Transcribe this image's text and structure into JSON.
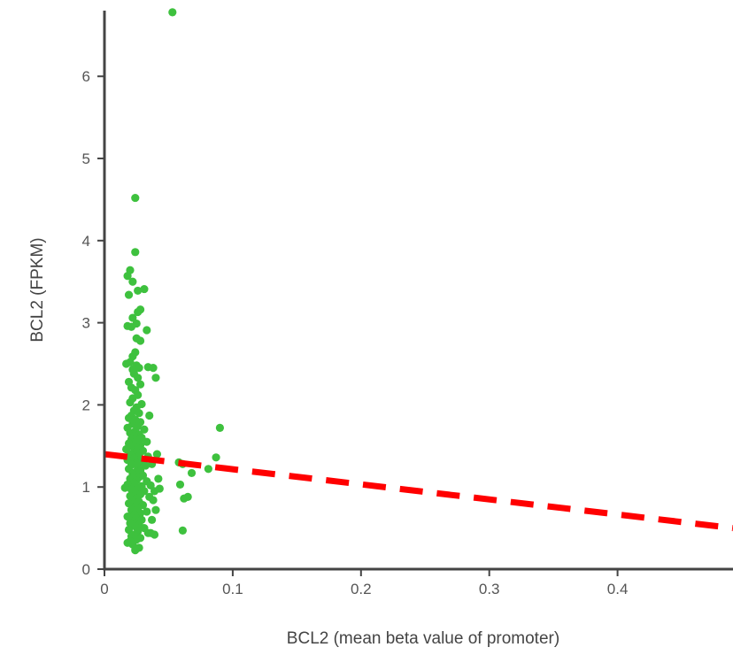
{
  "chart_data": {
    "type": "scatter",
    "xlabel": "BCL2 (mean beta value of promoter)",
    "ylabel": "BCL2 (FPKM)",
    "xlim": [
      0,
      0.49
    ],
    "ylim": [
      0,
      6.8
    ],
    "x_ticks": [
      0,
      0.1,
      0.2,
      0.3,
      0.4
    ],
    "x_tick_labels": [
      "0",
      "0.1",
      "0.2",
      "0.3",
      "0.4"
    ],
    "y_ticks": [
      0,
      1,
      2,
      3,
      4,
      5,
      6
    ],
    "y_tick_labels": [
      "0",
      "1",
      "2",
      "3",
      "4",
      "5",
      "6"
    ],
    "grid": false,
    "legend": "none",
    "series": [
      {
        "color": "#3ec13e",
        "points": [
          [
            0.053,
            6.78
          ],
          [
            0.024,
            4.52
          ],
          [
            0.024,
            3.86
          ],
          [
            0.02,
            3.64
          ],
          [
            0.018,
            3.57
          ],
          [
            0.022,
            3.5
          ],
          [
            0.031,
            3.41
          ],
          [
            0.026,
            3.39
          ],
          [
            0.019,
            3.34
          ],
          [
            0.028,
            3.16
          ],
          [
            0.026,
            3.13
          ],
          [
            0.022,
            3.06
          ],
          [
            0.025,
            2.99
          ],
          [
            0.018,
            2.96
          ],
          [
            0.033,
            2.91
          ],
          [
            0.021,
            2.95
          ],
          [
            0.025,
            2.81
          ],
          [
            0.028,
            2.78
          ],
          [
            0.024,
            2.64
          ],
          [
            0.022,
            2.59
          ],
          [
            0.02,
            2.52
          ],
          [
            0.025,
            2.48
          ],
          [
            0.027,
            2.45
          ],
          [
            0.034,
            2.46
          ],
          [
            0.038,
            2.45
          ],
          [
            0.017,
            2.5
          ],
          [
            0.022,
            2.43
          ],
          [
            0.023,
            2.38
          ],
          [
            0.026,
            2.33
          ],
          [
            0.04,
            2.33
          ],
          [
            0.019,
            2.28
          ],
          [
            0.028,
            2.25
          ],
          [
            0.021,
            2.21
          ],
          [
            0.024,
            2.18
          ],
          [
            0.026,
            2.12
          ],
          [
            0.022,
            2.08
          ],
          [
            0.02,
            2.03
          ],
          [
            0.029,
            2.01
          ],
          [
            0.025,
            1.97
          ],
          [
            0.023,
            1.93
          ],
          [
            0.027,
            1.9
          ],
          [
            0.021,
            1.87
          ],
          [
            0.035,
            1.87
          ],
          [
            0.019,
            1.84
          ],
          [
            0.024,
            1.82
          ],
          [
            0.028,
            1.79
          ],
          [
            0.022,
            1.77
          ],
          [
            0.026,
            1.74
          ],
          [
            0.018,
            1.72
          ],
          [
            0.031,
            1.7
          ],
          [
            0.024,
            1.68
          ],
          [
            0.02,
            1.66
          ],
          [
            0.027,
            1.64
          ],
          [
            0.023,
            1.62
          ],
          [
            0.029,
            1.6
          ],
          [
            0.021,
            1.58
          ],
          [
            0.025,
            1.56
          ],
          [
            0.033,
            1.55
          ],
          [
            0.019,
            1.53
          ],
          [
            0.028,
            1.51
          ],
          [
            0.022,
            1.49
          ],
          [
            0.026,
            1.47
          ],
          [
            0.017,
            1.46
          ],
          [
            0.03,
            1.44
          ],
          [
            0.024,
            1.42
          ],
          [
            0.02,
            1.4
          ],
          [
            0.027,
            1.38
          ],
          [
            0.034,
            1.37
          ],
          [
            0.023,
            1.35
          ],
          [
            0.018,
            1.33
          ],
          [
            0.029,
            1.31
          ],
          [
            0.025,
            1.29
          ],
          [
            0.021,
            1.27
          ],
          [
            0.032,
            1.26
          ],
          [
            0.026,
            1.24
          ],
          [
            0.019,
            1.22
          ],
          [
            0.028,
            1.2
          ],
          [
            0.024,
            1.18
          ],
          [
            0.022,
            1.16
          ],
          [
            0.03,
            1.14
          ],
          [
            0.027,
            1.12
          ],
          [
            0.02,
            1.1
          ],
          [
            0.025,
            1.08
          ],
          [
            0.033,
            1.07
          ],
          [
            0.023,
            1.05
          ],
          [
            0.018,
            1.03
          ],
          [
            0.029,
            1.01
          ],
          [
            0.026,
            0.99
          ],
          [
            0.021,
            0.97
          ],
          [
            0.016,
            0.99
          ],
          [
            0.031,
            0.95
          ],
          [
            0.024,
            0.93
          ],
          [
            0.028,
            0.91
          ],
          [
            0.02,
            0.89
          ],
          [
            0.035,
            0.88
          ],
          [
            0.025,
            0.86
          ],
          [
            0.022,
            0.84
          ],
          [
            0.027,
            0.82
          ],
          [
            0.019,
            0.8
          ],
          [
            0.03,
            0.78
          ],
          [
            0.024,
            0.76
          ],
          [
            0.026,
            0.74
          ],
          [
            0.021,
            0.72
          ],
          [
            0.033,
            0.7
          ],
          [
            0.028,
            0.68
          ],
          [
            0.023,
            0.66
          ],
          [
            0.018,
            0.64
          ],
          [
            0.025,
            0.62
          ],
          [
            0.029,
            0.6
          ],
          [
            0.022,
            0.58
          ],
          [
            0.02,
            0.56
          ],
          [
            0.027,
            0.54
          ],
          [
            0.024,
            0.52
          ],
          [
            0.031,
            0.5
          ],
          [
            0.019,
            0.48
          ],
          [
            0.026,
            0.46
          ],
          [
            0.036,
            0.44
          ],
          [
            0.023,
            0.42
          ],
          [
            0.021,
            0.4
          ],
          [
            0.028,
            0.38
          ],
          [
            0.025,
            0.36
          ],
          [
            0.02,
            0.34
          ],
          [
            0.018,
            0.32
          ],
          [
            0.022,
            0.3
          ],
          [
            0.027,
            0.26
          ],
          [
            0.024,
            0.23
          ],
          [
            0.039,
            0.42
          ],
          [
            0.034,
            0.44
          ],
          [
            0.041,
            1.4
          ],
          [
            0.037,
            1.28
          ],
          [
            0.042,
            1.1
          ],
          [
            0.039,
            0.95
          ],
          [
            0.043,
            0.98
          ],
          [
            0.036,
            1.02
          ],
          [
            0.038,
            0.84
          ],
          [
            0.04,
            0.72
          ],
          [
            0.037,
            0.6
          ],
          [
            0.058,
            1.3
          ],
          [
            0.061,
            1.28
          ],
          [
            0.068,
            1.17
          ],
          [
            0.059,
            1.03
          ],
          [
            0.062,
            0.86
          ],
          [
            0.065,
            0.88
          ],
          [
            0.061,
            0.47
          ],
          [
            0.081,
            1.22
          ],
          [
            0.087,
            1.36
          ],
          [
            0.09,
            1.72
          ]
        ]
      }
    ],
    "trendline": {
      "color": "#ff0000",
      "style": "dashed",
      "x": [
        0,
        0.49
      ],
      "y": [
        1.4,
        0.5
      ]
    }
  }
}
